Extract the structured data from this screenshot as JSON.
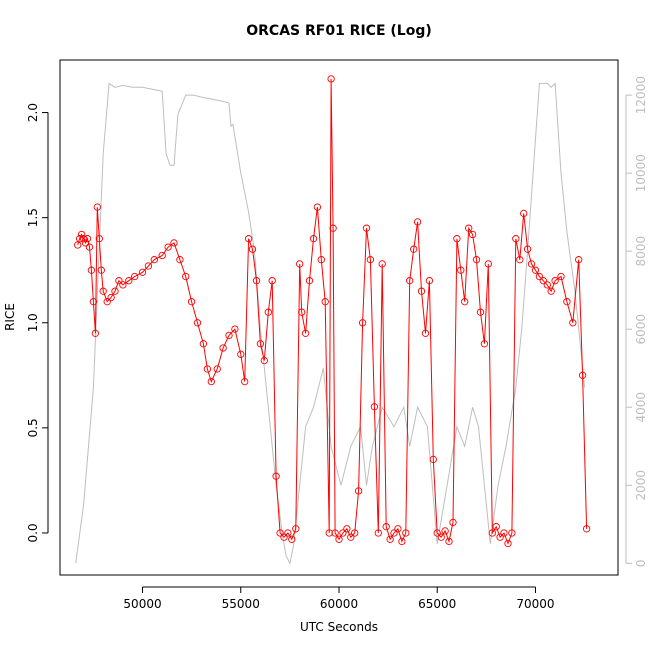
{
  "chart_data": {
    "type": "line",
    "title": "ORCAS RF01 RICE (Log)",
    "xlabel": "UTC Seconds",
    "ylabel": "RICE",
    "xlim": [
      45800,
      74200
    ],
    "ylim": [
      -0.2,
      2.25
    ],
    "y2lim": [
      -300,
      12900
    ],
    "x_ticks": [
      "50000",
      "55000",
      "60000",
      "65000",
      "70000"
    ],
    "y_ticks": [
      "0.0",
      "0.5",
      "1.0",
      "1.5",
      "2.0"
    ],
    "y2_ticks": [
      "0",
      "2000",
      "4000",
      "6000",
      "8000",
      "10000",
      "12000"
    ],
    "grid": false,
    "series": [
      {
        "color": "#ff0000",
        "marker": "open-circle",
        "x": [
          46700,
          46800,
          46900,
          47000,
          47100,
          47200,
          47300,
          47400,
          47500,
          47600,
          47700,
          47800,
          47900,
          48000,
          48200,
          48400,
          48600,
          48800,
          49000,
          49300,
          49600,
          50000,
          50300,
          50600,
          51000,
          51300,
          51600,
          51900,
          52200,
          52500,
          52800,
          53100,
          53300,
          53500,
          53800,
          54100,
          54400,
          54700,
          55000,
          55200,
          55400,
          55600,
          55800,
          56000,
          56200,
          56400,
          56600,
          56800,
          57000,
          57200,
          57400,
          57600,
          57800,
          58000,
          58100,
          58300,
          58500,
          58700,
          58900,
          59100,
          59300,
          59500,
          59600,
          59700,
          59800,
          60000,
          60200,
          60400,
          60600,
          60800,
          61000,
          61200,
          61400,
          61600,
          61800,
          62000,
          62200,
          62400,
          62600,
          62800,
          63000,
          63200,
          63400,
          63600,
          63800,
          64000,
          64200,
          64400,
          64600,
          64800,
          65000,
          65200,
          65400,
          65600,
          65800,
          66000,
          66200,
          66400,
          66600,
          66800,
          67000,
          67200,
          67400,
          67600,
          67800,
          68000,
          68200,
          68400,
          68600,
          68800,
          69000,
          69200,
          69400,
          69600,
          69800,
          70000,
          70200,
          70400,
          70600,
          70800,
          71000,
          71300,
          71600,
          71900,
          72200,
          72400,
          72600
        ],
        "y": [
          1.37,
          1.4,
          1.42,
          1.4,
          1.38,
          1.4,
          1.36,
          1.25,
          1.1,
          0.95,
          1.55,
          1.4,
          1.25,
          1.15,
          1.1,
          1.12,
          1.15,
          1.2,
          1.18,
          1.2,
          1.22,
          1.24,
          1.27,
          1.3,
          1.32,
          1.36,
          1.38,
          1.3,
          1.22,
          1.1,
          1.0,
          0.9,
          0.78,
          0.72,
          0.78,
          0.88,
          0.94,
          0.97,
          0.85,
          0.72,
          1.4,
          1.35,
          1.2,
          0.9,
          0.82,
          1.05,
          1.2,
          0.27,
          0.0,
          -0.02,
          0.0,
          -0.03,
          0.02,
          1.28,
          1.05,
          0.95,
          1.2,
          1.4,
          1.55,
          1.3,
          1.1,
          0.0,
          2.16,
          1.45,
          0.0,
          -0.03,
          0.0,
          0.02,
          -0.02,
          0.0,
          0.2,
          1.0,
          1.45,
          1.3,
          0.6,
          0.0,
          1.28,
          0.03,
          -0.03,
          0.0,
          0.02,
          -0.04,
          0.0,
          1.2,
          1.35,
          1.48,
          1.15,
          0.95,
          1.2,
          0.35,
          0.0,
          -0.02,
          0.01,
          -0.04,
          0.05,
          1.4,
          1.25,
          1.1,
          1.45,
          1.42,
          1.3,
          1.05,
          0.9,
          1.28,
          0.0,
          0.03,
          -0.02,
          0.0,
          -0.05,
          0.0,
          1.4,
          1.3,
          1.52,
          1.35,
          1.28,
          1.25,
          1.22,
          1.2,
          1.18,
          1.15,
          1.2,
          1.22,
          1.1,
          1.0,
          1.3,
          0.75,
          0.02
        ]
      },
      {
        "color": "#bebebe",
        "axis": "right",
        "marker": "none",
        "x": [
          46600,
          47000,
          47500,
          48000,
          48300,
          48600,
          49000,
          49500,
          50000,
          50500,
          51000,
          51200,
          51400,
          51600,
          51800,
          52200,
          52600,
          53000,
          53500,
          54000,
          54400,
          54500,
          54600,
          55000,
          55400,
          55700,
          56000,
          56400,
          56800,
          57100,
          57300,
          57500,
          57700,
          57900,
          58300,
          58700,
          59200,
          59600,
          60100,
          60600,
          61100,
          61400,
          61700,
          62200,
          62800,
          63300,
          63600,
          64000,
          64500,
          65000,
          65500,
          66000,
          66400,
          66800,
          67100,
          67400,
          67700,
          68100,
          68500,
          69000,
          69300,
          69600,
          70200,
          70600,
          70800,
          71000,
          71300,
          71600,
          72000,
          72500
        ],
        "y": [
          0,
          1500,
          4500,
          10500,
          12300,
          12200,
          12250,
          12200,
          12200,
          12150,
          12100,
          10500,
          10200,
          10200,
          11500,
          12000,
          12000,
          11950,
          11900,
          11850,
          11800,
          11200,
          11250,
          10000,
          9000,
          8000,
          6000,
          4000,
          2000,
          800,
          200,
          0,
          500,
          1500,
          3500,
          4000,
          5000,
          3000,
          2000,
          3000,
          3500,
          2000,
          3000,
          4000,
          3500,
          4000,
          3000,
          4000,
          3500,
          500,
          2000,
          3500,
          3000,
          4000,
          3500,
          2000,
          500,
          2000,
          3000,
          4500,
          6000,
          8000,
          12300,
          12300,
          12200,
          12300,
          10000,
          8500,
          7000,
          4500
        ]
      }
    ]
  }
}
